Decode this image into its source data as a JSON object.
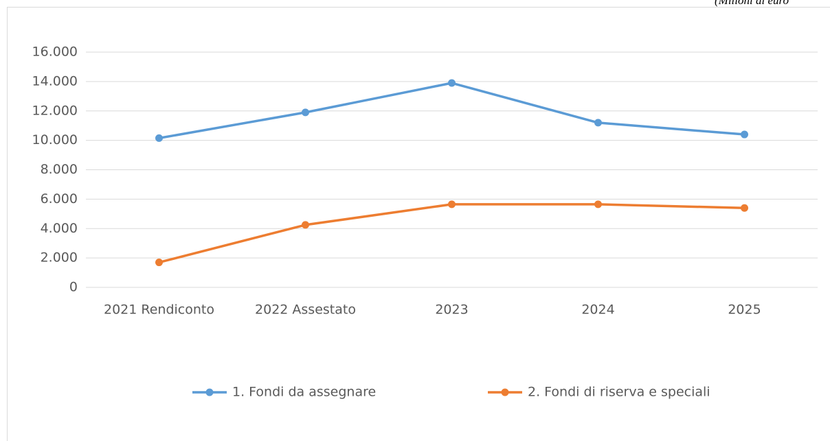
{
  "chart_data": {
    "type": "line",
    "note": "(Milioni di euro",
    "categories": [
      "2021 Rendiconto",
      "2022 Assestato",
      "2023",
      "2024",
      "2025"
    ],
    "series": [
      {
        "name": "1. Fondi da assegnare",
        "color": "#5b9bd5",
        "values": [
          10150,
          11900,
          13900,
          11200,
          10400
        ]
      },
      {
        "name": "2. Fondi di riserva e speciali",
        "color": "#ed7d31",
        "values": [
          1700,
          4250,
          5650,
          5650,
          5400
        ]
      }
    ],
    "ylim": [
      0,
      16000
    ],
    "yticks": [
      0,
      {
        "value": 2000,
        "label": "2.000"
      },
      {
        "value": 4000,
        "label": "4.000"
      },
      {
        "value": 6000,
        "label": "6.000"
      },
      {
        "value": 8000,
        "label": "8.000"
      },
      {
        "value": 10000,
        "label": "10.000"
      },
      {
        "value": 12000,
        "label": "12.000"
      },
      {
        "value": 14000,
        "label": "14.000"
      },
      {
        "value": 16000,
        "label": "16.000"
      }
    ],
    "grid": true,
    "legend": "bottom"
  }
}
